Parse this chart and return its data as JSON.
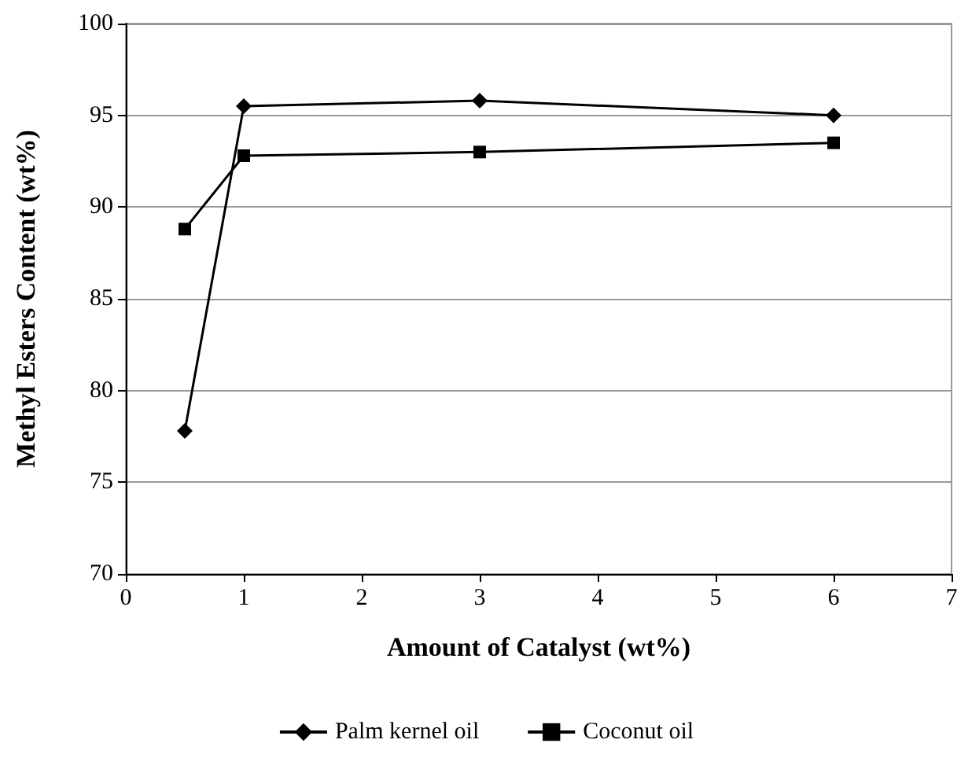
{
  "chart_data": {
    "type": "line",
    "xlabel": "Amount of Catalyst (wt%)",
    "ylabel": "Methyl Esters Content (wt%)",
    "x": [
      0.5,
      1,
      3,
      6
    ],
    "series": [
      {
        "name": "Palm kernel oil",
        "color": "#000000",
        "marker": "diamond",
        "values": [
          77.8,
          95.5,
          95.8,
          95.0
        ]
      },
      {
        "name": "Coconut oil",
        "color": "#000000",
        "marker": "square",
        "values": [
          88.8,
          92.8,
          93.0,
          93.5
        ]
      }
    ],
    "xlim": [
      0,
      7
    ],
    "xticks": [
      0,
      1,
      2,
      3,
      4,
      5,
      6,
      7
    ],
    "ylim": [
      70,
      100
    ],
    "yticks": [
      70,
      75,
      80,
      85,
      90,
      95,
      100
    ],
    "grid": "y",
    "legend": "bottom",
    "line_style": "solid"
  }
}
